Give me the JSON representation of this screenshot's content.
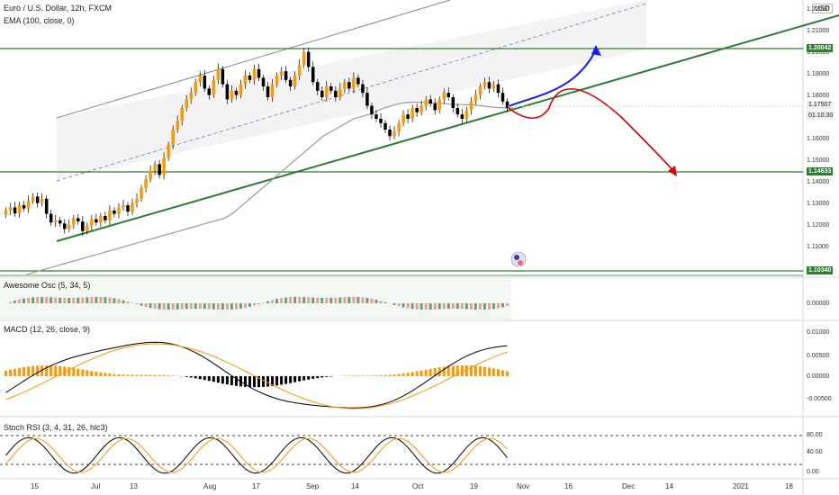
{
  "header": {
    "symbol_line": "Euro / U.S. Dollar, 12h, FXCM",
    "ema_label": "EMA (100, close, 0)",
    "currency": "USD"
  },
  "indicators": {
    "ao_label": "Awesome Osc (5, 34, 5)",
    "macd_label": "MACD (12, 26, close, 9)",
    "stoch_label": "Stoch RSI (3, 4, 31, 26, hlc3)"
  },
  "colors": {
    "up_candle": "#ff9800",
    "down_candle": "#000000",
    "green_line": "#2e7d32",
    "blue_arrow": "#1a1aff",
    "red_arrow": "#e00000",
    "ema": "#999999"
  },
  "price_axis": {
    "ticks": [
      "1.22000",
      "1.21000",
      "1.20000",
      "1.19000",
      "1.18000",
      "1.17000",
      "1.16000",
      "1.15000",
      "1.14000",
      "1.13000",
      "1.12000",
      "1.11000"
    ],
    "highlight_labels": [
      {
        "text": "1.20042",
        "style": "green"
      },
      {
        "text": "1.17507",
        "style": "light"
      },
      {
        "text": "01:10:30",
        "style": "light"
      },
      {
        "text": "1.14633",
        "style": "green"
      },
      {
        "text": "1.10340",
        "style": "green"
      }
    ]
  },
  "ao_axis": {
    "ticks": [
      "0.00000"
    ]
  },
  "macd_axis": {
    "ticks": [
      "0.01000",
      "0.00500",
      "0.00000",
      "-0.00500"
    ]
  },
  "stoch_axis": {
    "ticks": [
      "80.00",
      "40.00",
      "0.00"
    ]
  },
  "time_axis": {
    "labels": [
      "15",
      "Jul",
      "13",
      "Aug",
      "17",
      "Sep",
      "14",
      "Oct",
      "19",
      "Nov",
      "16",
      "Dec",
      "14",
      "2021",
      "18"
    ]
  },
  "chart_data": {
    "type": "candlestick",
    "series_note": "",
    "close": [
      1.1275,
      1.129,
      1.1262,
      1.13,
      1.1285,
      1.132,
      1.134,
      1.131,
      1.133,
      1.126,
      1.122,
      1.123,
      1.1215,
      1.119,
      1.121,
      1.124,
      1.1225,
      1.118,
      1.1205,
      1.1235,
      1.122,
      1.125,
      1.123,
      1.1275,
      1.126,
      1.129,
      1.13,
      1.127,
      1.131,
      1.133,
      1.138,
      1.142,
      1.146,
      1.149,
      1.144,
      1.152,
      1.158,
      1.165,
      1.169,
      1.175,
      1.179,
      1.182,
      1.187,
      1.19,
      1.184,
      1.181,
      1.188,
      1.193,
      1.186,
      1.179,
      1.183,
      1.181,
      1.186,
      1.19,
      1.188,
      1.193,
      1.189,
      1.185,
      1.18,
      1.186,
      1.19,
      1.192,
      1.188,
      1.185,
      1.19,
      1.195,
      1.201,
      1.194,
      1.187,
      1.183,
      1.18,
      1.185,
      1.183,
      1.18,
      1.184,
      1.187,
      1.184,
      1.189,
      1.186,
      1.182,
      1.176,
      1.172,
      1.17,
      1.168,
      1.165,
      1.162,
      1.164,
      1.168,
      1.172,
      1.17,
      1.175,
      1.173,
      1.176,
      1.179,
      1.177,
      1.174,
      1.179,
      1.182,
      1.18,
      1.175,
      1.172,
      1.17,
      1.174,
      1.178,
      1.181,
      1.185,
      1.187,
      1.184,
      1.186,
      1.182,
      1.178,
      1.1751
    ],
    "ema100": [
      1.098,
      1.099,
      1.1,
      1.101,
      1.102,
      1.103,
      1.104,
      1.105,
      1.106,
      1.107,
      1.108,
      1.109,
      1.11,
      1.111,
      1.112,
      1.113,
      1.114,
      1.115,
      1.116,
      1.117,
      1.118,
      1.119,
      1.12,
      1.121,
      1.122,
      1.123,
      1.124,
      1.126,
      1.129,
      1.132,
      1.135,
      1.138,
      1.141,
      1.144,
      1.147,
      1.15,
      1.153,
      1.156,
      1.159,
      1.162,
      1.164,
      1.166,
      1.168,
      1.17,
      1.171,
      1.172,
      1.1735,
      1.175,
      1.176,
      1.177,
      1.1775,
      1.1777,
      1.1776,
      1.1775,
      1.1772,
      1.177,
      1.1768,
      1.1766,
      1.1765,
      1.1763,
      1.176,
      1.1755,
      1.1752,
      1.175,
      1.1751
    ],
    "levels": [
      1.20042,
      1.14633,
      1.1034
    ],
    "ylim": [
      1.1,
      1.225
    ]
  }
}
